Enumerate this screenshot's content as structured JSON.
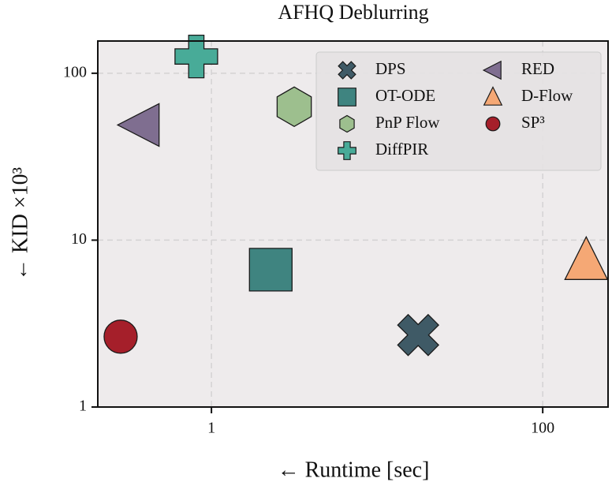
{
  "chart_data": {
    "type": "scatter",
    "title": "AFHQ Deblurring",
    "xlabel": "← Runtime [sec]",
    "ylabel": "← KID ×10³",
    "xscale": "log",
    "yscale": "log",
    "grid": true,
    "legend_loc": "upper right",
    "xlim": [
      0.206,
      248
    ],
    "ylim": [
      1,
      156
    ],
    "xticks": [
      1,
      100
    ],
    "yticks": [
      1,
      10,
      100
    ],
    "series": [
      {
        "name": "DPS",
        "color": "#3f5a66",
        "marker": "X",
        "x": [
          17.7
        ],
        "values": [
          2.7
        ]
      },
      {
        "name": "OT-ODE",
        "color": "#3f8480",
        "marker": "square",
        "x": [
          2.28
        ],
        "values": [
          6.65
        ]
      },
      {
        "name": "PnP Flow",
        "color": "#9dbf8e",
        "marker": "hexagon",
        "x": [
          3.16
        ],
        "values": [
          63
        ]
      },
      {
        "name": "DiffPIR",
        "color": "#48ab98",
        "marker": "plus",
        "x": [
          0.81
        ],
        "values": [
          126
        ]
      },
      {
        "name": "RED",
        "color": "#7f6e90",
        "marker": "triangle-left",
        "x": [
          0.37
        ],
        "values": [
          49
        ]
      },
      {
        "name": "D-Flow",
        "color": "#f5a875",
        "marker": "triangle-up",
        "x": [
          183
        ],
        "values": [
          7.57
        ]
      },
      {
        "name": "SP³",
        "color": "#a51f2a",
        "marker": "circle",
        "x": [
          0.283
        ],
        "values": [
          2.64
        ]
      }
    ]
  }
}
